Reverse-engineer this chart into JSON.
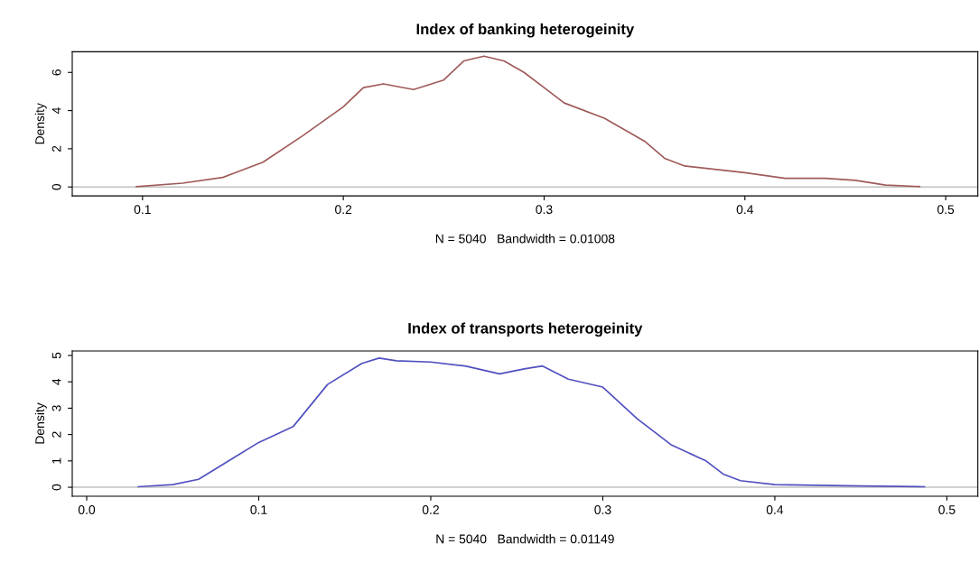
{
  "chart_data": [
    {
      "type": "line",
      "title": "Index of banking heterogeinity",
      "xlabel": "N = 5040   Bandwidth = 0.01008",
      "ylabel": "Density",
      "x": [
        0.097,
        0.12,
        0.14,
        0.16,
        0.18,
        0.2,
        0.21,
        0.22,
        0.235,
        0.25,
        0.26,
        0.27,
        0.28,
        0.29,
        0.3,
        0.31,
        0.33,
        0.35,
        0.36,
        0.37,
        0.4,
        0.42,
        0.44,
        0.455,
        0.47,
        0.487
      ],
      "series": [
        {
          "color": "#a05a5a",
          "values": [
            0.02,
            0.2,
            0.5,
            1.3,
            2.7,
            4.2,
            5.2,
            5.4,
            5.1,
            5.6,
            6.6,
            6.85,
            6.6,
            6.0,
            5.2,
            4.4,
            3.6,
            2.4,
            1.5,
            1.1,
            0.75,
            0.45,
            0.45,
            0.35,
            0.1,
            0.02
          ]
        }
      ],
      "xlim": [
        0.065,
        0.516
      ],
      "ylim": [
        -0.47,
        7.08
      ],
      "xticks": [
        0.1,
        0.2,
        0.3,
        0.4,
        0.5
      ],
      "yticks": [
        0,
        2,
        4,
        6
      ],
      "ref_lines": [
        {
          "axis": "y",
          "value": 0,
          "label": null,
          "color": "#c0c0c0"
        }
      ],
      "grid": false,
      "legend": false
    },
    {
      "type": "line",
      "title": "Index of transports heterogeinity",
      "xlabel": "N = 5040   Bandwidth = 0.01149",
      "ylabel": "Density",
      "x": [
        0.03,
        0.05,
        0.065,
        0.08,
        0.1,
        0.12,
        0.14,
        0.16,
        0.17,
        0.18,
        0.2,
        0.22,
        0.24,
        0.255,
        0.265,
        0.28,
        0.3,
        0.32,
        0.34,
        0.36,
        0.37,
        0.38,
        0.4,
        0.45,
        0.487
      ],
      "series": [
        {
          "color": "#5050c0",
          "values": [
            0.02,
            0.1,
            0.3,
            0.9,
            1.7,
            2.3,
            3.9,
            4.7,
            4.9,
            4.8,
            4.75,
            4.6,
            4.3,
            4.5,
            4.6,
            4.1,
            3.8,
            2.6,
            1.6,
            1.0,
            0.5,
            0.25,
            0.1,
            0.05,
            0.02
          ]
        }
      ],
      "xlim": [
        -0.0084,
        0.518
      ],
      "ylim": [
        -0.34,
        5.17
      ],
      "xticks": [
        {
          "value": 0,
          "label": "0.0"
        },
        0.1,
        0.2,
        0.3,
        0.4,
        0.5
      ],
      "yticks": [
        0,
        1,
        2,
        3,
        4,
        5
      ],
      "ref_lines": [
        {
          "axis": "y",
          "value": 0,
          "label": null,
          "color": "#c0c0c0"
        }
      ],
      "grid": false,
      "legend": false
    }
  ]
}
